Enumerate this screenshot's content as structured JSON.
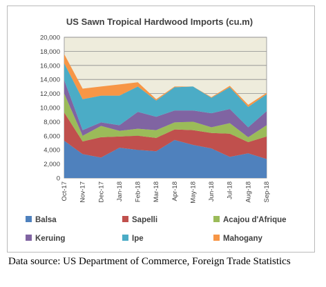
{
  "chart_data": {
    "type": "area",
    "stacked": true,
    "title": "US Sawn Tropical Hardwood Imports (cu.m)",
    "categories": [
      "Oct-17",
      "Nov-17",
      "Dec-17",
      "Jan-18",
      "Feb-18",
      "Mar-18",
      "Apr-18",
      "May-18",
      "Jun-18",
      "Jul-18",
      "Aug-18",
      "Sep-18"
    ],
    "y_ticks": [
      "0",
      "2,000",
      "4,000",
      "6,000",
      "8,000",
      "10,000",
      "12,000",
      "14,000",
      "16,000",
      "18,000",
      "20,000"
    ],
    "ylim": [
      0,
      20000
    ],
    "grid": true,
    "legend_position": "bottom",
    "plot_background": "#eeecdc",
    "series": [
      {
        "name": "Balsa",
        "color": "#4f81bd",
        "values": [
          5300,
          3400,
          2900,
          4300,
          4000,
          3800,
          5400,
          4700,
          4200,
          3000,
          3500,
          2700
        ]
      },
      {
        "name": "Sapelli",
        "color": "#c0504d",
        "values": [
          4000,
          1800,
          2900,
          1600,
          2000,
          1900,
          1500,
          2100,
          2200,
          3300,
          1600,
          3200
        ]
      },
      {
        "name": "Acajou d'Afrique",
        "color": "#9bbb59",
        "values": [
          2700,
          800,
          1600,
          800,
          1000,
          1100,
          1000,
          1200,
          800,
          1500,
          700,
          1600
        ]
      },
      {
        "name": "Keruing",
        "color": "#8064a2",
        "values": [
          1900,
          800,
          500,
          800,
          2400,
          1900,
          1700,
          1600,
          2000,
          2000,
          1400,
          2000
        ]
      },
      {
        "name": "Ipe",
        "color": "#4bacc6",
        "values": [
          2400,
          4400,
          3800,
          4200,
          3600,
          2300,
          3300,
          3400,
          2200,
          3100,
          2900,
          2400
        ]
      },
      {
        "name": "Mahogany",
        "color": "#f79646",
        "values": [
          1300,
          1500,
          1300,
          1600,
          600,
          200,
          100,
          0,
          100,
          200,
          300,
          200
        ]
      }
    ]
  },
  "caption": "Data source: US Department of Commerce, Foreign Trade Statistics"
}
